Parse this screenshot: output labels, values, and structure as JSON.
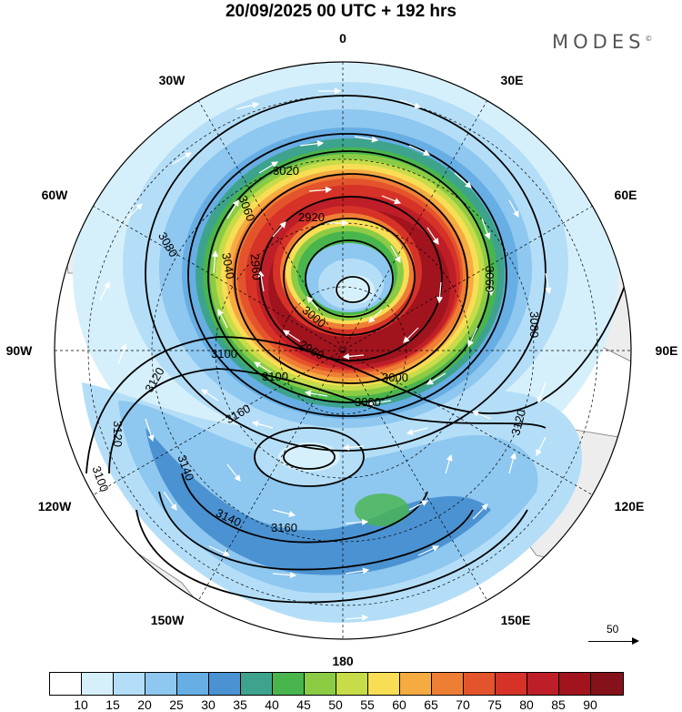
{
  "title": "20/09/2025  00 UTC  + 192 hrs",
  "brand": "MODES",
  "brand_mark": "©",
  "longitude_labels": {
    "lon_0": "0",
    "lon_30e": "30E",
    "lon_60e": "60E",
    "lon_90e": "90E",
    "lon_120e": "120E",
    "lon_150e": "150E",
    "lon_180": "180",
    "lon_150w": "150W",
    "lon_120w": "120W",
    "lon_90w": "90W",
    "lon_60w": "60W",
    "lon_30w": "30W"
  },
  "contour_labels": [
    "3020",
    "3080",
    "3060",
    "3040",
    "3060",
    "3080",
    "2920",
    "2960",
    "3000",
    "3060",
    "3060",
    "3100",
    "3100",
    "3080",
    "3120",
    "3120",
    "3160",
    "3100",
    "3140",
    "3140",
    "3160",
    "3120",
    "2960",
    "3000",
    "3040",
    "3020"
  ],
  "vector_reference": "50",
  "colorbar": {
    "labels": [
      "10",
      "15",
      "20",
      "25",
      "30",
      "35",
      "40",
      "45",
      "50",
      "55",
      "60",
      "65",
      "70",
      "75",
      "80",
      "85",
      "90"
    ],
    "colors": [
      "#ffffff",
      "#d6f0fb",
      "#b4def7",
      "#8ec7ef",
      "#67aee4",
      "#4b92d2",
      "#3ea38c",
      "#49b54d",
      "#8ccc44",
      "#c7dc48",
      "#f8de55",
      "#f6ab41",
      "#ef7e35",
      "#e4542c",
      "#d63227",
      "#be1e27",
      "#a1141e",
      "#85111a"
    ]
  }
}
